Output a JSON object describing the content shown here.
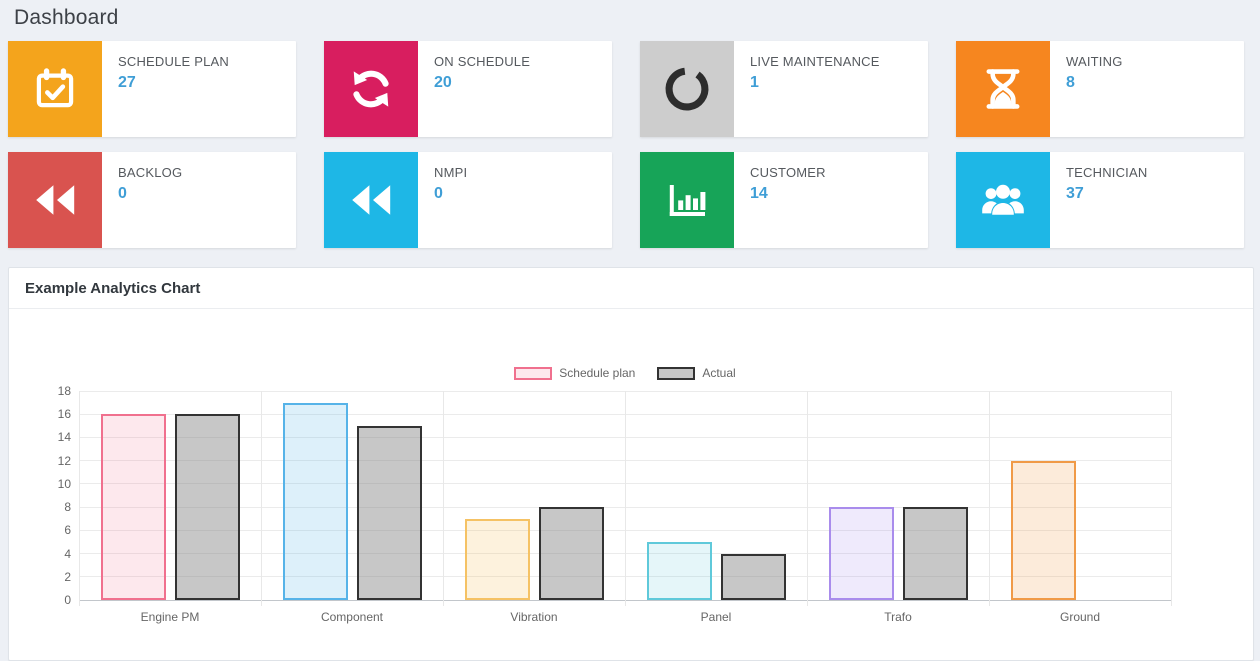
{
  "page": {
    "title": "Dashboard",
    "background_color": "#edf0f5",
    "value_accent_color": "#3f9ed6"
  },
  "cards": [
    {
      "label": "SCHEDULE PLAN",
      "value": "27",
      "icon": "calendar-check-icon",
      "tile_color": "#f4a41c",
      "icon_color": "#ffffff"
    },
    {
      "label": "ON SCHEDULE",
      "value": "20",
      "icon": "refresh-icon",
      "tile_color": "#d81e5f",
      "icon_color": "#ffffff"
    },
    {
      "label": "LIVE MAINTENANCE",
      "value": "1",
      "icon": "circle-notch-icon",
      "tile_color": "#cdcdcd",
      "icon_color": "#2d2d2d"
    },
    {
      "label": "WAITING",
      "value": "8",
      "icon": "hourglass-icon",
      "tile_color": "#f6861f",
      "icon_color": "#ffffff"
    },
    {
      "label": "BACKLOG",
      "value": "0",
      "icon": "backward-icon",
      "tile_color": "#d9534f",
      "icon_color": "#ffffff"
    },
    {
      "label": "NMPI",
      "value": "0",
      "icon": "backward-icon",
      "tile_color": "#1eb7e6",
      "icon_color": "#ffffff"
    },
    {
      "label": "CUSTOMER",
      "value": "14",
      "icon": "bar-chart-icon",
      "tile_color": "#17a458",
      "icon_color": "#ffffff"
    },
    {
      "label": "TECHNICIAN",
      "value": "37",
      "icon": "users-icon",
      "tile_color": "#1eb7e6",
      "icon_color": "#ffffff"
    }
  ],
  "panel": {
    "title": "Example Analytics Chart"
  },
  "chart_data": {
    "type": "bar",
    "title": "Example Analytics Chart",
    "categories": [
      "Engine PM",
      "Component",
      "Vibration",
      "Panel",
      "Trafo",
      "Ground"
    ],
    "series": [
      {
        "name": "Schedule plan",
        "values": [
          16,
          17,
          7,
          5,
          8,
          12
        ],
        "bar_colors": [
          {
            "border": "#f0708e",
            "fill": "rgba(240,112,142,0.16)"
          },
          {
            "border": "#56b3e8",
            "fill": "rgba(86,179,232,0.20)"
          },
          {
            "border": "#f5c264",
            "fill": "rgba(245,194,100,0.22)"
          },
          {
            "border": "#5fc9da",
            "fill": "rgba(95,201,218,0.16)"
          },
          {
            "border": "#a98cec",
            "fill": "rgba(169,140,236,0.18)"
          },
          {
            "border": "#f09a47",
            "fill": "rgba(240,154,71,0.20)"
          }
        ]
      },
      {
        "name": "Actual",
        "values": [
          16,
          15,
          8,
          4,
          8,
          null
        ],
        "bar_colors": [
          {
            "border": "#333333",
            "fill": "rgba(130,130,130,0.45)"
          },
          {
            "border": "#333333",
            "fill": "rgba(130,130,130,0.45)"
          },
          {
            "border": "#333333",
            "fill": "rgba(130,130,130,0.45)"
          },
          {
            "border": "#333333",
            "fill": "rgba(130,130,130,0.45)"
          },
          {
            "border": "#333333",
            "fill": "rgba(130,130,130,0.45)"
          },
          {
            "border": "#333333",
            "fill": "rgba(130,130,130,0.45)"
          }
        ]
      }
    ],
    "legend": [
      {
        "label": "Schedule plan",
        "fill": "rgba(240,112,142,0.16)",
        "border": "#f0708e"
      },
      {
        "label": "Actual",
        "fill": "rgba(130,130,130,0.45)",
        "border": "#333333"
      }
    ],
    "ylim": [
      0,
      18
    ],
    "ytick_step": 2,
    "yticks": [
      0,
      2,
      4,
      6,
      8,
      10,
      12,
      14,
      16,
      18
    ],
    "grid": true,
    "legend_position": "top"
  }
}
